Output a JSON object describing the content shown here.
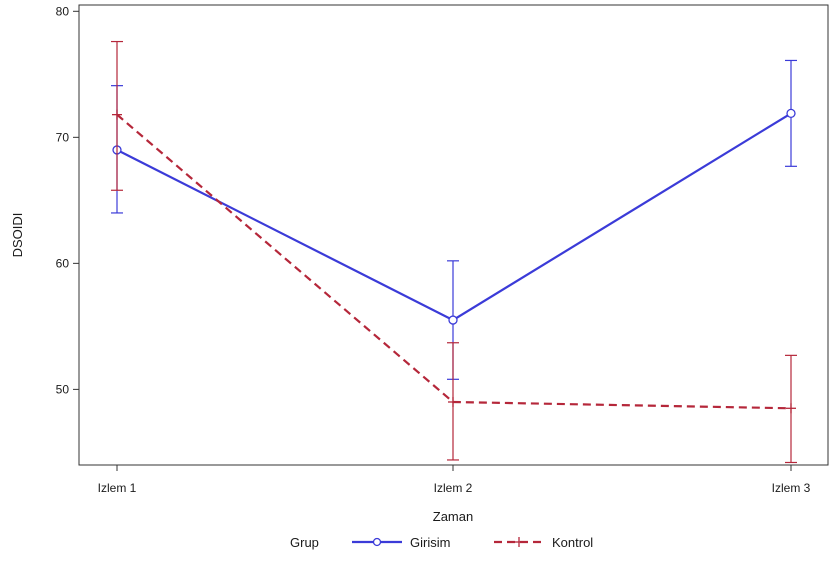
{
  "chart_data": {
    "type": "line",
    "title": "",
    "xlabel": "Zaman",
    "ylabel": "DSOIDI",
    "categories": [
      "Izlem 1",
      "Izlem 2",
      "Izlem 3"
    ],
    "ylim": [
      44,
      80.5
    ],
    "yticks": [
      50,
      60,
      70,
      80
    ],
    "grid": false,
    "legend_title": "Grup",
    "legend_position": "bottom",
    "series": [
      {
        "name": "Girisim",
        "values": [
          69.0,
          55.5,
          71.9
        ],
        "error_low": [
          64.0,
          50.8,
          67.7
        ],
        "error_high": [
          74.1,
          60.2,
          76.1
        ],
        "color": "#3b3bd8",
        "line_style": "solid",
        "marker": "circle"
      },
      {
        "name": "Kontrol",
        "values": [
          71.8,
          49.0,
          48.5
        ],
        "error_low": [
          65.8,
          44.4,
          44.2
        ],
        "error_high": [
          77.6,
          53.7,
          52.7
        ],
        "color": "#b5273a",
        "line_style": "dashed",
        "marker": "plus"
      }
    ]
  }
}
